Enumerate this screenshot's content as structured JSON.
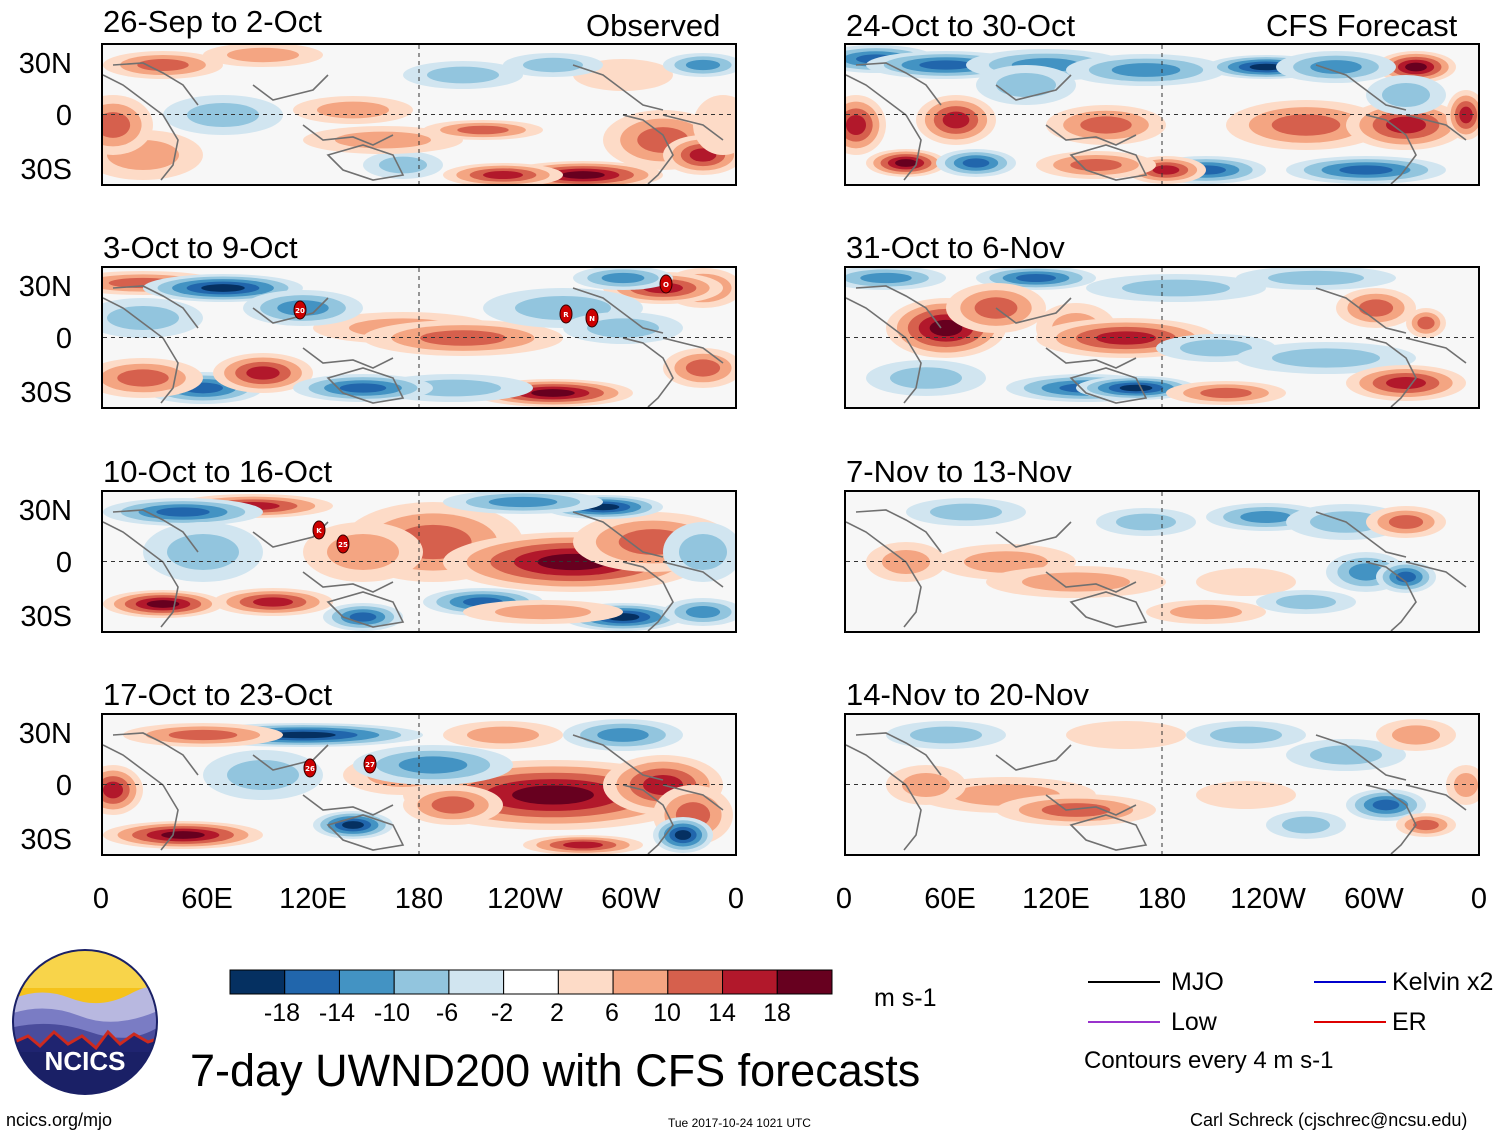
{
  "header": {
    "observed_label": "Observed",
    "forecast_label": "CFS Forecast"
  },
  "panels": [
    {
      "id": "p1",
      "title": "26-Sep to 2-Oct",
      "column": "observed",
      "storms": []
    },
    {
      "id": "p2",
      "title": "3-Oct to 9-Oct",
      "column": "observed",
      "storms": [
        "20",
        "R",
        "N",
        "O"
      ]
    },
    {
      "id": "p3",
      "title": "10-Oct to 16-Oct",
      "column": "observed",
      "storms": [
        "K",
        "25"
      ]
    },
    {
      "id": "p4",
      "title": "17-Oct to 23-Oct",
      "column": "observed",
      "storms": [
        "26",
        "27"
      ]
    },
    {
      "id": "p5",
      "title": "24-Oct to 30-Oct",
      "column": "forecast",
      "storms": []
    },
    {
      "id": "p6",
      "title": "31-Oct to 6-Nov",
      "column": "forecast",
      "storms": []
    },
    {
      "id": "p7",
      "title": "7-Nov to 13-Nov",
      "column": "forecast",
      "storms": []
    },
    {
      "id": "p8",
      "title": "14-Nov to 20-Nov",
      "column": "forecast",
      "storms": []
    }
  ],
  "axes": {
    "lat_labels": [
      "30N",
      "0",
      "30S"
    ],
    "lon_labels": [
      "0",
      "60E",
      "120E",
      "180",
      "120W",
      "60W",
      "0"
    ]
  },
  "colorbar": {
    "tick_labels": [
      "-18",
      "-14",
      "-10",
      "-6",
      "-2",
      "2",
      "6",
      "10",
      "14",
      "18"
    ],
    "colors": [
      "#053061",
      "#2166ac",
      "#4393c3",
      "#92c5de",
      "#d1e5f0",
      "#ffffff",
      "#fddbc7",
      "#f4a582",
      "#d6604d",
      "#b2182b",
      "#67001f"
    ],
    "units": "m s-1"
  },
  "legend": {
    "items": [
      {
        "label": "MJO",
        "color": "#000000"
      },
      {
        "label": "Kelvin x2",
        "color": "#0000cc"
      },
      {
        "label": "Low",
        "color": "#9933cc"
      },
      {
        "label": "ER",
        "color": "#dd0000"
      }
    ],
    "contour_note": "Contours every 4 m s-1"
  },
  "main_title": "7-day UWND200 with CFS forecasts",
  "logo": {
    "text": "NCICS"
  },
  "footer": {
    "website": "ncics.org/mjo",
    "timestamp": "Tue 2017-10-24 1021 UTC",
    "credit": "Carl Schreck (cjschrec@ncsu.edu)"
  }
}
